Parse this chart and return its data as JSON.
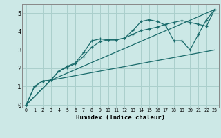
{
  "xlabel": "Humidex (Indice chaleur)",
  "background_color": "#cce8e6",
  "grid_color": "#aacfcc",
  "line_color": "#1a6b6b",
  "xlim": [
    -0.5,
    23.5
  ],
  "ylim": [
    -0.15,
    5.5
  ],
  "xticks": [
    0,
    1,
    2,
    3,
    4,
    5,
    6,
    7,
    8,
    9,
    10,
    11,
    12,
    13,
    14,
    15,
    16,
    17,
    18,
    19,
    20,
    21,
    22,
    23
  ],
  "yticks": [
    0,
    1,
    2,
    3,
    4,
    5
  ],
  "line1_x": [
    0,
    1,
    2,
    3,
    4,
    5,
    6,
    7,
    8,
    9,
    10,
    11,
    12,
    13,
    14,
    15,
    16,
    17,
    18,
    19,
    20,
    21,
    22,
    23
  ],
  "line1_y": [
    0.0,
    1.0,
    1.3,
    1.35,
    1.85,
    2.1,
    2.3,
    2.85,
    3.5,
    3.6,
    3.55,
    3.55,
    3.65,
    4.05,
    4.55,
    4.65,
    4.55,
    4.35,
    3.5,
    3.5,
    3.0,
    3.85,
    4.65,
    5.2
  ],
  "line2_x": [
    0,
    1,
    2,
    3,
    4,
    5,
    6,
    7,
    8,
    9,
    10,
    11,
    12,
    13,
    14,
    15,
    16,
    17,
    18,
    19,
    20,
    21,
    22,
    23
  ],
  "line2_y": [
    0.0,
    1.0,
    1.3,
    1.35,
    1.85,
    2.05,
    2.25,
    2.65,
    3.15,
    3.45,
    3.55,
    3.55,
    3.65,
    3.85,
    4.05,
    4.15,
    4.25,
    4.4,
    4.5,
    4.6,
    4.5,
    4.4,
    4.3,
    5.2
  ],
  "line3_x": [
    0,
    3,
    23
  ],
  "line3_y": [
    0.0,
    1.35,
    5.2
  ],
  "line4_x": [
    0,
    3,
    23
  ],
  "line4_y": [
    0.0,
    1.35,
    3.0
  ]
}
